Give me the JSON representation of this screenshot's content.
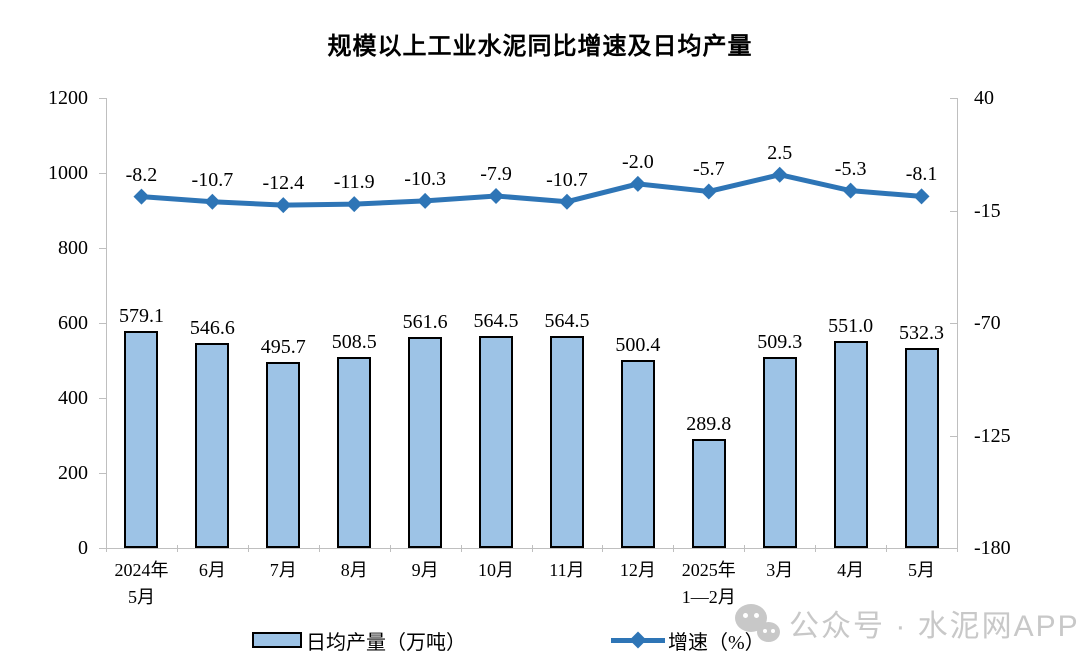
{
  "title": "规模以上工业水泥同比增速及日均产量",
  "chart_data": {
    "type": "bar",
    "title": "规模以上工业水泥同比增速及日均产量",
    "categories": [
      "2024年\n5月",
      "6月",
      "7月",
      "8月",
      "9月",
      "10月",
      "11月",
      "12月",
      "2025年\n1—2月",
      "3月",
      "4月",
      "5月"
    ],
    "series": [
      {
        "name": "日均产量（万吨）",
        "type": "bar",
        "axis": "left",
        "color": "#9DC3E6",
        "border_color": "#000000",
        "values": [
          579.1,
          546.6,
          495.7,
          508.5,
          561.6,
          564.5,
          564.5,
          500.4,
          289.8,
          509.3,
          551.0,
          532.3
        ]
      },
      {
        "name": "增速（%）",
        "type": "line",
        "axis": "right",
        "color": "#2E75B6",
        "values": [
          -8.2,
          -10.7,
          -12.4,
          -11.9,
          -10.3,
          -7.9,
          -10.7,
          -2.0,
          -5.7,
          2.5,
          -5.3,
          -8.1
        ]
      }
    ],
    "left_axis": {
      "min": 0,
      "max": 1200,
      "ticks": [
        1200,
        1000,
        800,
        600,
        400,
        200,
        0
      ]
    },
    "right_axis": {
      "min": -180,
      "max": 40,
      "ticks": [
        40,
        -15,
        -70,
        -125,
        -180
      ]
    },
    "grid": false,
    "legend_position": "bottom",
    "axis_color": "#BFBFBF",
    "value_labels_decimals": 1
  },
  "legend": {
    "bar_label": "日均产量（万吨）",
    "line_label": "增速（%）"
  },
  "watermark": {
    "icon": "wechat-icon",
    "text": "公众号 · 水泥网APP",
    "color": "#C8C8C8"
  }
}
